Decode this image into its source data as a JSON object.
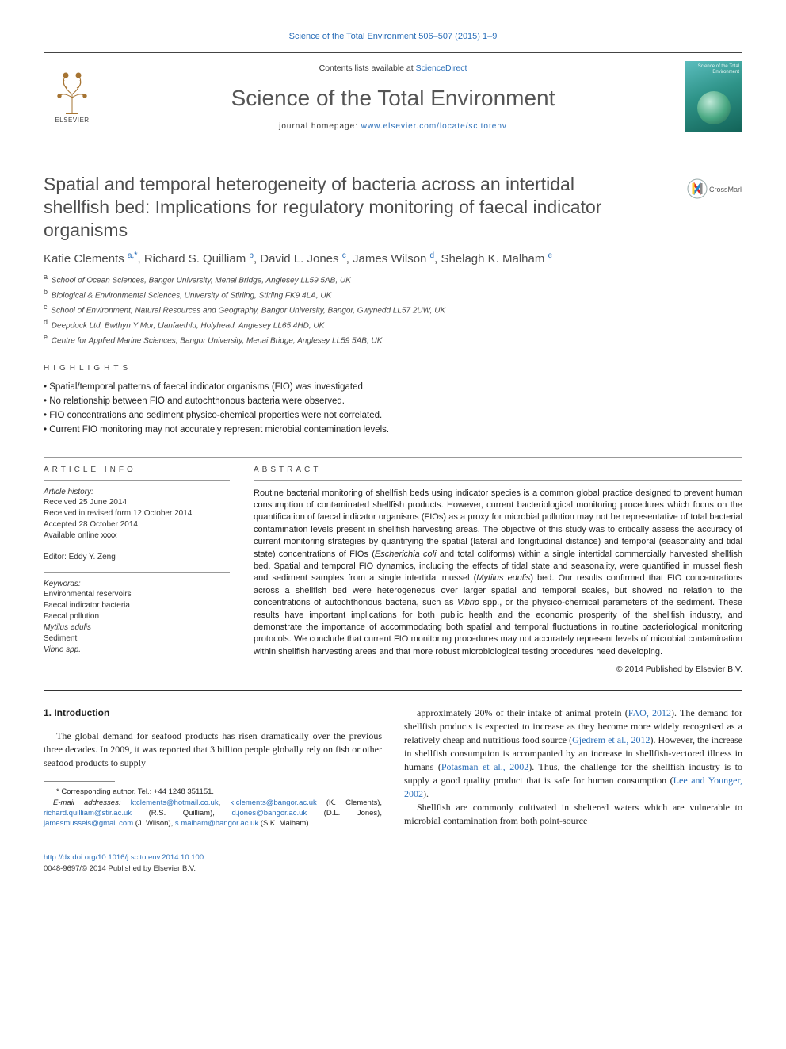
{
  "top_link": "Science of the Total Environment 506–507 (2015) 1–9",
  "masthead": {
    "contents_prefix": "Contents lists available at ",
    "contents_link": "ScienceDirect",
    "journal": "Science of the Total Environment",
    "homepage_prefix": "journal homepage: ",
    "homepage_link": "www.elsevier.com/locate/scitotenv",
    "publisher": "ELSEVIER",
    "cover_label": "Science of the Total Environment"
  },
  "title": "Spatial and temporal heterogeneity of bacteria across an intertidal shellfish bed: Implications for regulatory monitoring of faecal indicator organisms",
  "crossmark": "CrossMark",
  "authors_html": "Katie Clements <sup class='aff'>a,</sup><span class='star'>*</span>, Richard S. Quilliam <sup class='aff'>b</sup>, David L. Jones <sup class='aff'>c</sup>, James Wilson <sup class='aff'>d</sup>, Shelagh K. Malham <sup class='aff'>e</sup>",
  "affiliations": [
    {
      "key": "a",
      "text": "School of Ocean Sciences, Bangor University, Menai Bridge, Anglesey LL59 5AB, UK"
    },
    {
      "key": "b",
      "text": "Biological & Environmental Sciences, University of Stirling, Stirling FK9 4LA, UK"
    },
    {
      "key": "c",
      "text": "School of Environment, Natural Resources and Geography, Bangor University, Bangor, Gwynedd LL57 2UW, UK"
    },
    {
      "key": "d",
      "text": "Deepdock Ltd, Bwthyn Y Mor, Llanfaethlu, Holyhead, Anglesey LL65 4HD, UK"
    },
    {
      "key": "e",
      "text": "Centre for Applied Marine Sciences, Bangor University, Menai Bridge, Anglesey LL59 5AB, UK"
    }
  ],
  "highlights_label": "HIGHLIGHTS",
  "highlights": [
    "Spatial/temporal patterns of faecal indicator organisms (FIO) was investigated.",
    "No relationship between FIO and autochthonous bacteria were observed.",
    "FIO concentrations and sediment physico-chemical properties were not correlated.",
    "Current FIO monitoring may not accurately represent microbial contamination levels."
  ],
  "article_info_label": "ARTICLE INFO",
  "abstract_label": "ABSTRACT",
  "history_label": "Article history:",
  "history": [
    "Received 25 June 2014",
    "Received in revised form 12 October 2014",
    "Accepted 28 October 2014",
    "Available online xxxx"
  ],
  "editor_line": "Editor: Eddy Y. Zeng",
  "keywords_label": "Keywords:",
  "keywords": [
    {
      "t": "Environmental reservoirs",
      "it": false
    },
    {
      "t": "Faecal indicator bacteria",
      "it": false
    },
    {
      "t": "Faecal pollution",
      "it": false
    },
    {
      "t": "Mytilus edulis",
      "it": true
    },
    {
      "t": "Sediment",
      "it": false
    },
    {
      "t": "Vibrio spp.",
      "it": true
    }
  ],
  "abstract": "Routine bacterial monitoring of shellfish beds using indicator species is a common global practice designed to prevent human consumption of contaminated shellfish products. However, current bacteriological monitoring procedures which focus on the quantification of faecal indicator organisms (FIOs) as a proxy for microbial pollution may not be representative of total bacterial contamination levels present in shellfish harvesting areas. The objective of this study was to critically assess the accuracy of current monitoring strategies by quantifying the spatial (lateral and longitudinal distance) and temporal (seasonality and tidal state) concentrations of FIOs (Escherichia coli and total coliforms) within a single intertidal commercially harvested shellfish bed. Spatial and temporal FIO dynamics, including the effects of tidal state and seasonality, were quantified in mussel flesh and sediment samples from a single intertidal mussel (Mytilus edulis) bed. Our results confirmed that FIO concentrations across a shellfish bed were heterogeneous over larger spatial and temporal scales, but showed no relation to the concentrations of autochthonous bacteria, such as Vibrio spp., or the physico-chemical parameters of the sediment. These results have important implications for both public health and the economic prosperity of the shellfish industry, and demonstrate the importance of accommodating both spatial and temporal fluctuations in routine bacteriological monitoring protocols. We conclude that current FIO monitoring procedures may not accurately represent levels of microbial contamination within shellfish harvesting areas and that more robust microbiological testing procedures need developing.",
  "copyright": "© 2014 Published by Elsevier B.V.",
  "intro_heading": "1. Introduction",
  "intro_p1": "The global demand for seafood products has risen dramatically over the previous three decades. In 2009, it was reported that 3 billion people globally rely on fish or other seafood products to supply",
  "intro_p2_pre": "approximately 20% of their intake of animal protein (",
  "intro_cite1": "FAO, 2012",
  "intro_p2_a": "). The demand for shellfish products is expected to increase as they become more widely recognised as a relatively cheap and nutritious food source (",
  "intro_cite2": "Gjedrem et al., 2012",
  "intro_p2_b": "). However, the increase in shellfish consumption is accompanied by an increase in shellfish-vectored illness in humans (",
  "intro_cite3": "Potasman et al., 2002",
  "intro_p2_c": "). Thus, the challenge for the shellfish industry is to supply a good quality product that is safe for human consumption (",
  "intro_cite4": "Lee and Younger, 2002",
  "intro_p2_d": ").",
  "intro_p3": "Shellfish are commonly cultivated in sheltered waters which are vulnerable to microbial contamination from both point-source",
  "corr_line": "* Corresponding author. Tel.: +44 1248 351151.",
  "emails_label": "E-mail addresses: ",
  "emails": [
    {
      "addr": "ktclements@hotmail.co.uk",
      "who": ""
    },
    {
      "addr": "k.clements@bangor.ac.uk",
      "who": " (K. Clements),"
    },
    {
      "addr": "richard.quilliam@stir.ac.uk",
      "who": " (R.S. Quilliam),"
    },
    {
      "addr": "d.jones@bangor.ac.uk",
      "who": " (D.L. Jones),"
    },
    {
      "addr": "jamesmussels@gmail.com",
      "who": " (J. Wilson),"
    },
    {
      "addr": "s.malham@bangor.ac.uk",
      "who": " (S.K. Malham)."
    }
  ],
  "footer_doi": "http://dx.doi.org/10.1016/j.scitotenv.2014.10.100",
  "footer_issn": "0048-9697/© 2014 Published by Elsevier B.V.",
  "colors": {
    "link": "#2a6eb8",
    "heading_gray": "#4d4d4d",
    "text": "#222222",
    "rule": "#333333"
  }
}
